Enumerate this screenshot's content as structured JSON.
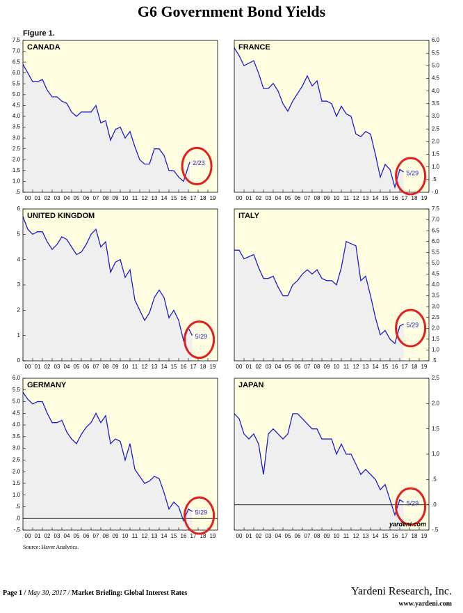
{
  "title": "G6 Government Bond Yields",
  "figure_label": "Figure 1.",
  "source": "Source: Haver Analytics.",
  "watermark": "yardeni.com",
  "footer": {
    "page": "Page 1 /",
    "date": "May 30, 2017 /",
    "report": "Market Briefing: Global Interest Rates",
    "company": "Yardeni Research, Inc.",
    "url": "www.yardeni.com"
  },
  "chart_data": [
    {
      "type": "line",
      "title": "CANADA",
      "annotation": "2/23",
      "color": "#1c1ccc",
      "y_axis_side": "left",
      "zero_line": false,
      "x": [
        0,
        0.5,
        1,
        1.5,
        2,
        2.5,
        3,
        3.5,
        4,
        4.5,
        5,
        5.5,
        6,
        6.5,
        7,
        7.5,
        8,
        8.5,
        9,
        9.5,
        10,
        10.5,
        11,
        11.5,
        12,
        12.5,
        13,
        13.5,
        14,
        14.5,
        15,
        15.5,
        16,
        16.5,
        17,
        17.15
      ],
      "values": [
        6.4,
        6.0,
        5.6,
        5.6,
        5.7,
        5.2,
        4.9,
        4.9,
        4.7,
        4.6,
        4.2,
        4.0,
        4.2,
        4.2,
        4.2,
        4.5,
        3.7,
        3.8,
        2.9,
        3.4,
        3.5,
        3.0,
        3.3,
        2.6,
        2.0,
        1.8,
        1.8,
        2.5,
        2.5,
        2.2,
        1.5,
        1.5,
        1.2,
        1.0,
        1.7,
        1.9
      ],
      "xlim": [
        0,
        20
      ],
      "xticks": [
        {
          "value": 0,
          "label": "00"
        },
        {
          "value": 1,
          "label": "01"
        },
        {
          "value": 2,
          "label": "02"
        },
        {
          "value": 3,
          "label": "03"
        },
        {
          "value": 4,
          "label": "04"
        },
        {
          "value": 5,
          "label": "05"
        },
        {
          "value": 6,
          "label": "06"
        },
        {
          "value": 7,
          "label": "07"
        },
        {
          "value": 8,
          "label": "08"
        },
        {
          "value": 9,
          "label": "09"
        },
        10,
        11,
        12,
        13,
        14,
        15,
        16,
        17,
        18,
        19
      ],
      "ylim": [
        0.5,
        7.5
      ],
      "yticks": [
        7.5,
        {
          "value": 7,
          "label": "7.0"
        },
        6.5,
        {
          "value": 6,
          "label": "6.0"
        },
        5.5,
        {
          "value": 5,
          "label": "5.0"
        },
        4.5,
        {
          "value": 4,
          "label": "4.0"
        },
        3.5,
        {
          "value": 3,
          "label": "3.0"
        },
        2.5,
        {
          "value": 2,
          "label": "2.0"
        },
        1.5,
        {
          "value": 1,
          "label": "1.0"
        },
        {
          "value": 0.5,
          "label": ".5"
        }
      ]
    },
    {
      "type": "line",
      "title": "FRANCE",
      "annotation": "5/29",
      "color": "#1c1ccc",
      "y_axis_side": "right",
      "zero_line": false,
      "x": [
        0,
        0.5,
        1,
        1.5,
        2,
        2.5,
        3,
        3.5,
        4,
        4.5,
        5,
        5.5,
        6,
        6.5,
        7,
        7.5,
        8,
        8.5,
        9,
        9.5,
        10,
        10.5,
        11,
        11.5,
        12,
        12.5,
        13,
        13.5,
        14,
        14.5,
        15,
        15.5,
        16,
        16.5,
        17,
        17.4
      ],
      "values": [
        5.7,
        5.4,
        5.0,
        5.1,
        5.2,
        4.7,
        4.1,
        4.1,
        4.3,
        4.0,
        3.5,
        3.2,
        3.6,
        3.9,
        4.2,
        4.6,
        4.2,
        4.4,
        3.6,
        3.6,
        3.5,
        3.0,
        3.4,
        3.1,
        3.0,
        2.3,
        2.2,
        2.4,
        2.3,
        1.5,
        0.6,
        1.1,
        0.9,
        0.2,
        0.9,
        0.8
      ],
      "xlim": [
        0,
        20
      ],
      "xticks": [
        {
          "value": 0,
          "label": "00"
        },
        {
          "value": 1,
          "label": "01"
        },
        {
          "value": 2,
          "label": "02"
        },
        {
          "value": 3,
          "label": "03"
        },
        {
          "value": 4,
          "label": "04"
        },
        {
          "value": 5,
          "label": "05"
        },
        {
          "value": 6,
          "label": "06"
        },
        {
          "value": 7,
          "label": "07"
        },
        {
          "value": 8,
          "label": "08"
        },
        {
          "value": 9,
          "label": "09"
        },
        10,
        11,
        12,
        13,
        14,
        15,
        16,
        17,
        18,
        19
      ],
      "ylim": [
        0,
        6
      ],
      "yticks": [
        {
          "value": 6,
          "label": "6.0"
        },
        5.5,
        {
          "value": 5,
          "label": "5.0"
        },
        4.5,
        {
          "value": 4,
          "label": "4.0"
        },
        3.5,
        {
          "value": 3,
          "label": "3.0"
        },
        2.5,
        {
          "value": 2,
          "label": "2.0"
        },
        1.5,
        {
          "value": 1,
          "label": "1.0"
        },
        {
          "value": 0.5,
          "label": ".5"
        },
        {
          "value": 0,
          "label": "-.0"
        }
      ]
    },
    {
      "type": "line",
      "title": "UNITED KINGDOM",
      "annotation": "5/29",
      "color": "#1c1ccc",
      "y_axis_side": "left",
      "zero_line": false,
      "x": [
        0,
        0.5,
        1,
        1.5,
        2,
        2.5,
        3,
        3.5,
        4,
        4.5,
        5,
        5.5,
        6,
        6.5,
        7,
        7.5,
        8,
        8.5,
        9,
        9.5,
        10,
        10.5,
        11,
        11.5,
        12,
        12.5,
        13,
        13.5,
        14,
        14.5,
        15,
        15.5,
        16,
        16.5,
        17,
        17.4
      ],
      "values": [
        5.7,
        5.2,
        5.0,
        5.1,
        5.1,
        4.7,
        4.4,
        4.6,
        4.9,
        4.8,
        4.5,
        4.2,
        4.3,
        4.6,
        5.0,
        5.2,
        4.5,
        4.7,
        3.5,
        3.9,
        4.0,
        3.3,
        3.6,
        2.4,
        2.0,
        1.6,
        1.9,
        2.5,
        2.8,
        2.5,
        1.7,
        2.0,
        1.6,
        0.8,
        1.3,
        1.0
      ],
      "xlim": [
        0,
        20
      ],
      "xticks": [
        {
          "value": 0,
          "label": "00"
        },
        {
          "value": 1,
          "label": "01"
        },
        {
          "value": 2,
          "label": "02"
        },
        {
          "value": 3,
          "label": "03"
        },
        {
          "value": 4,
          "label": "04"
        },
        {
          "value": 5,
          "label": "05"
        },
        {
          "value": 6,
          "label": "06"
        },
        {
          "value": 7,
          "label": "07"
        },
        {
          "value": 8,
          "label": "08"
        },
        {
          "value": 9,
          "label": "09"
        },
        10,
        11,
        12,
        13,
        14,
        15,
        16,
        17,
        18,
        19
      ],
      "ylim": [
        0,
        6
      ],
      "yticks": [
        6,
        5,
        4,
        3,
        2,
        1,
        0
      ]
    },
    {
      "type": "line",
      "title": "ITALY",
      "annotation": "5/29",
      "color": "#1c1ccc",
      "y_axis_side": "right",
      "zero_line": false,
      "x": [
        0,
        0.5,
        1,
        1.5,
        2,
        2.5,
        3,
        3.5,
        4,
        4.5,
        5,
        5.5,
        6,
        6.5,
        7,
        7.5,
        8,
        8.5,
        9,
        9.5,
        10,
        10.5,
        11,
        11.5,
        12,
        12.5,
        13,
        13.5,
        14,
        14.5,
        15,
        15.5,
        16,
        16.5,
        17,
        17.4
      ],
      "values": [
        5.6,
        5.6,
        5.2,
        5.3,
        5.4,
        4.8,
        4.3,
        4.3,
        4.4,
        3.9,
        3.5,
        3.5,
        4.0,
        4.2,
        4.5,
        4.7,
        4.5,
        4.7,
        4.3,
        4.2,
        4.2,
        4.0,
        4.8,
        6.0,
        5.9,
        5.8,
        4.2,
        4.4,
        3.5,
        2.5,
        1.7,
        1.9,
        1.5,
        1.3,
        2.1,
        2.2
      ],
      "xlim": [
        0,
        20
      ],
      "xticks": [
        {
          "value": 0,
          "label": "00"
        },
        {
          "value": 1,
          "label": "01"
        },
        {
          "value": 2,
          "label": "02"
        },
        {
          "value": 3,
          "label": "03"
        },
        {
          "value": 4,
          "label": "04"
        },
        {
          "value": 5,
          "label": "05"
        },
        {
          "value": 6,
          "label": "06"
        },
        {
          "value": 7,
          "label": "07"
        },
        {
          "value": 8,
          "label": "08"
        },
        {
          "value": 9,
          "label": "09"
        },
        10,
        11,
        12,
        13,
        14,
        15,
        16,
        17,
        18,
        19
      ],
      "ylim": [
        0.5,
        7.5
      ],
      "yticks": [
        7.5,
        {
          "value": 7,
          "label": "7.0"
        },
        6.5,
        {
          "value": 6,
          "label": "6.0"
        },
        5.5,
        {
          "value": 5,
          "label": "5.0"
        },
        4.5,
        {
          "value": 4,
          "label": "4.0"
        },
        3.5,
        {
          "value": 3,
          "label": "3.0"
        },
        2.5,
        {
          "value": 2,
          "label": "2.0"
        },
        1.5,
        {
          "value": 1,
          "label": "1.0"
        },
        {
          "value": 0.5,
          "label": ".5"
        }
      ]
    },
    {
      "type": "line",
      "title": "GERMANY",
      "annotation": "5/29",
      "color": "#1c1ccc",
      "y_axis_side": "left",
      "zero_line": true,
      "x": [
        0,
        0.5,
        1,
        1.5,
        2,
        2.5,
        3,
        3.5,
        4,
        4.5,
        5,
        5.5,
        6,
        6.5,
        7,
        7.5,
        8,
        8.5,
        9,
        9.5,
        10,
        10.5,
        11,
        11.5,
        12,
        12.5,
        13,
        13.5,
        14,
        14.5,
        15,
        15.5,
        16,
        16.5,
        17,
        17.4
      ],
      "values": [
        5.4,
        5.1,
        4.9,
        5.0,
        5.0,
        4.5,
        4.1,
        4.1,
        4.2,
        3.7,
        3.4,
        3.2,
        3.6,
        3.9,
        4.1,
        4.5,
        4.1,
        4.4,
        3.2,
        3.4,
        3.3,
        2.5,
        3.2,
        2.1,
        1.8,
        1.5,
        1.6,
        1.8,
        1.7,
        1.1,
        0.4,
        0.7,
        0.5,
        -0.1,
        0.4,
        0.3
      ],
      "xlim": [
        0,
        20
      ],
      "xticks": [
        {
          "value": 0,
          "label": "00"
        },
        {
          "value": 1,
          "label": "01"
        },
        {
          "value": 2,
          "label": "02"
        },
        {
          "value": 3,
          "label": "03"
        },
        {
          "value": 4,
          "label": "04"
        },
        {
          "value": 5,
          "label": "05"
        },
        {
          "value": 6,
          "label": "06"
        },
        {
          "value": 7,
          "label": "07"
        },
        {
          "value": 8,
          "label": "08"
        },
        {
          "value": 9,
          "label": "09"
        },
        10,
        11,
        12,
        13,
        14,
        15,
        16,
        17,
        18,
        19
      ],
      "ylim": [
        -0.5,
        6
      ],
      "yticks": [
        {
          "value": 6,
          "label": "6.0"
        },
        5.5,
        {
          "value": 5,
          "label": "5.0"
        },
        4.5,
        {
          "value": 4,
          "label": "4.0"
        },
        3.5,
        {
          "value": 3,
          "label": "3.0"
        },
        2.5,
        {
          "value": 2,
          "label": "2.0"
        },
        1.5,
        {
          "value": 1,
          "label": "1.0"
        },
        {
          "value": 0.5,
          "label": ".5"
        },
        {
          "value": 0,
          "label": ".0"
        },
        {
          "value": -0.5,
          "label": "-.5"
        }
      ]
    },
    {
      "type": "line",
      "title": "JAPAN",
      "annotation": "5/29",
      "color": "#1c1ccc",
      "y_axis_side": "right",
      "zero_line": true,
      "x": [
        0,
        0.5,
        1,
        1.5,
        2,
        2.5,
        3,
        3.5,
        4,
        4.5,
        5,
        5.5,
        6,
        6.5,
        7,
        7.5,
        8,
        8.5,
        9,
        9.5,
        10,
        10.5,
        11,
        11.5,
        12,
        12.5,
        13,
        13.5,
        14,
        14.5,
        15,
        15.5,
        16,
        16.5,
        17,
        17.4
      ],
      "values": [
        1.8,
        1.7,
        1.4,
        1.3,
        1.4,
        1.2,
        0.6,
        1.4,
        1.5,
        1.4,
        1.3,
        1.4,
        1.8,
        1.8,
        1.7,
        1.6,
        1.5,
        1.5,
        1.3,
        1.3,
        1.3,
        1.0,
        1.2,
        1.0,
        1.0,
        0.8,
        0.6,
        0.7,
        0.6,
        0.5,
        0.3,
        0.4,
        0.1,
        -0.2,
        0.1,
        0.05
      ],
      "xlim": [
        0,
        20
      ],
      "xticks": [
        {
          "value": 0,
          "label": "00"
        },
        {
          "value": 1,
          "label": "01"
        },
        {
          "value": 2,
          "label": "02"
        },
        {
          "value": 3,
          "label": "03"
        },
        {
          "value": 4,
          "label": "04"
        },
        {
          "value": 5,
          "label": "05"
        },
        {
          "value": 6,
          "label": "06"
        },
        {
          "value": 7,
          "label": "07"
        },
        {
          "value": 8,
          "label": "08"
        },
        {
          "value": 9,
          "label": "09"
        },
        10,
        11,
        12,
        13,
        14,
        15,
        16,
        17,
        18,
        19
      ],
      "ylim": [
        -0.5,
        2.5
      ],
      "yticks": [
        2.5,
        {
          "value": 2,
          "label": "2.0"
        },
        1.5,
        {
          "value": 1,
          "label": "1.0"
        },
        {
          "value": 0.5,
          "label": ".5"
        },
        {
          "value": 0,
          "label": ".0"
        },
        {
          "value": -0.5,
          "label": "-.5"
        }
      ]
    }
  ]
}
